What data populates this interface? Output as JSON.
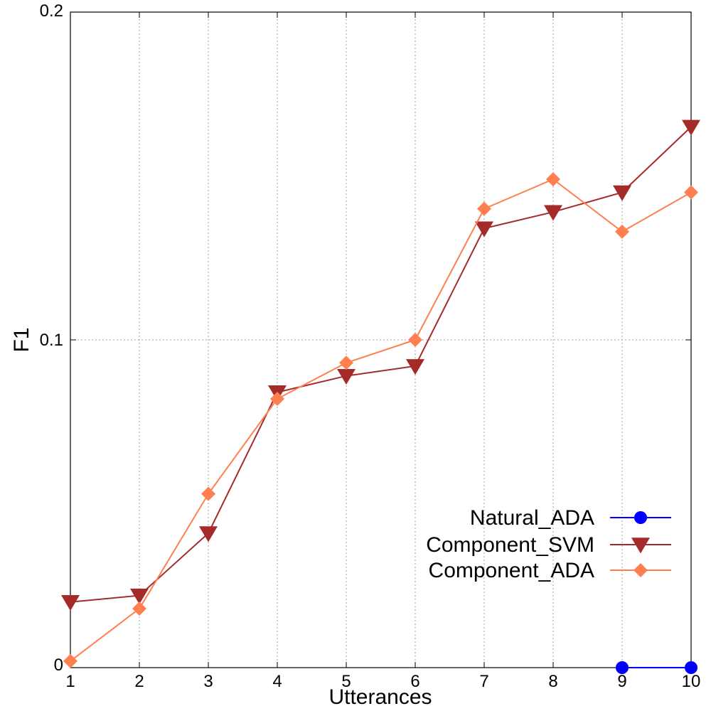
{
  "chart_data": {
    "type": "line",
    "title": "",
    "xlabel": "Utterances",
    "ylabel": "F1",
    "xlim": [
      1,
      10
    ],
    "ylim": [
      0,
      0.2
    ],
    "x_ticks": [
      "1",
      "2",
      "3",
      "4",
      "5",
      "6",
      "7",
      "8",
      "9",
      "10"
    ],
    "y_ticks": [
      "0",
      "0.1",
      "0.2"
    ],
    "grid": true,
    "legend_position": "bottom-right",
    "series": [
      {
        "name": "Natural_ADA",
        "color": "#0000ff",
        "marker": "circle",
        "x": [
          9,
          10
        ],
        "values": [
          0,
          0
        ]
      },
      {
        "name": "Component_SVM",
        "color": "#a52a2a",
        "marker": "triangle-down",
        "x": [
          1,
          2,
          3,
          4,
          5,
          6,
          7,
          8,
          9,
          10
        ],
        "values": [
          0.02,
          0.022,
          0.041,
          0.084,
          0.089,
          0.092,
          0.134,
          0.139,
          0.145,
          0.165
        ]
      },
      {
        "name": "Component_ADA",
        "color": "#ff7f50",
        "marker": "diamond",
        "x": [
          1,
          2,
          3,
          4,
          5,
          6,
          7,
          8,
          9,
          10
        ],
        "values": [
          0.002,
          0.018,
          0.053,
          0.082,
          0.093,
          0.1,
          0.14,
          0.149,
          0.133,
          0.145
        ]
      }
    ]
  }
}
